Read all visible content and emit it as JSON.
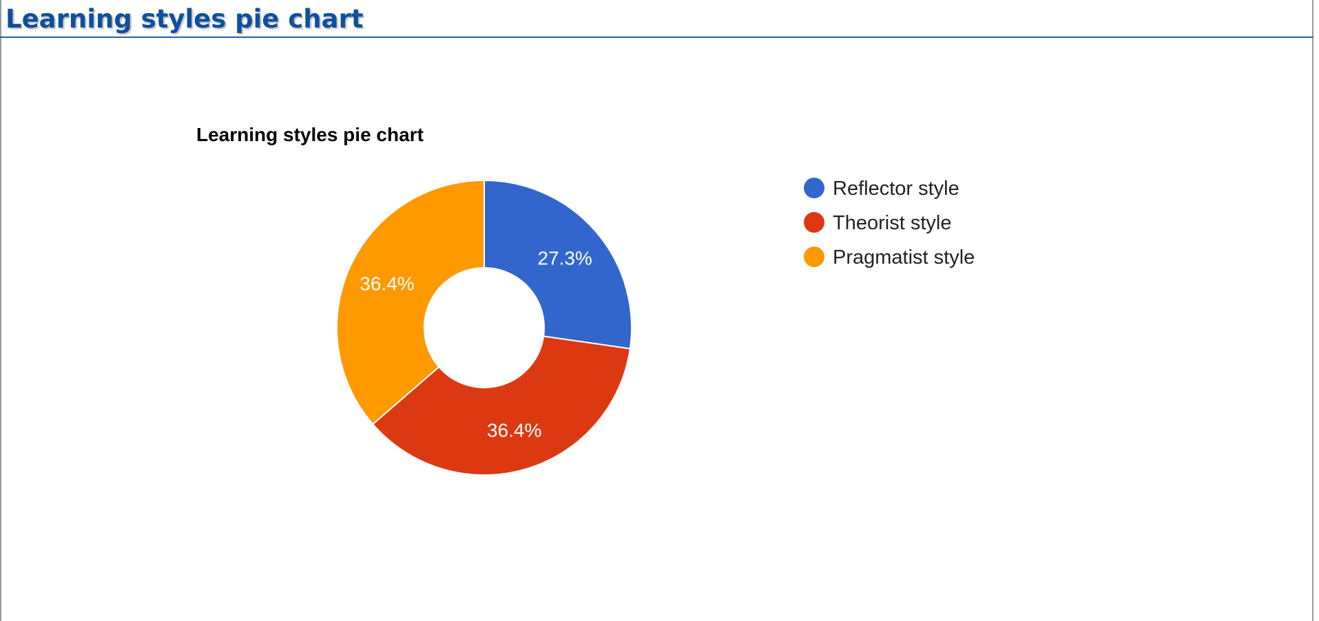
{
  "page": {
    "heading": "Learning styles pie chart"
  },
  "chart_data": {
    "type": "pie",
    "donut": true,
    "title": "Learning styles pie chart",
    "legend_position": "right",
    "slices": [
      {
        "label": "Reflector style",
        "percent": 27.3,
        "percent_label": "27.3%",
        "color": "#3366cc"
      },
      {
        "label": "Theorist style",
        "percent": 36.4,
        "percent_label": "36.4%",
        "color": "#dc3912"
      },
      {
        "label": "Pragmatist style",
        "percent": 36.4,
        "percent_label": "36.4%",
        "color": "#ff9900"
      }
    ]
  }
}
